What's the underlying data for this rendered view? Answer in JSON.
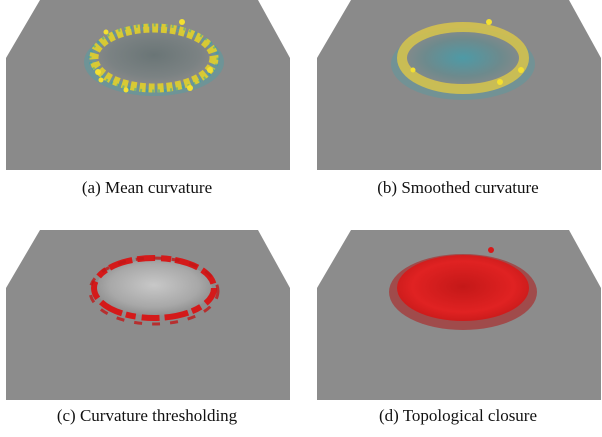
{
  "figure": {
    "panels": [
      {
        "id": "a",
        "caption": "(a)  Mean curvature"
      },
      {
        "id": "b",
        "caption": "(b)  Smoothed curvature"
      },
      {
        "id": "c",
        "caption": "(c)  Curvature thresholding"
      },
      {
        "id": "d",
        "caption": "(d)  Topological closure"
      }
    ],
    "colors": {
      "surface": "#8a8a8a",
      "curvature_high": "#e8d020",
      "curvature_low": "#2aa0b0",
      "threshold_red": "#d81818"
    }
  }
}
